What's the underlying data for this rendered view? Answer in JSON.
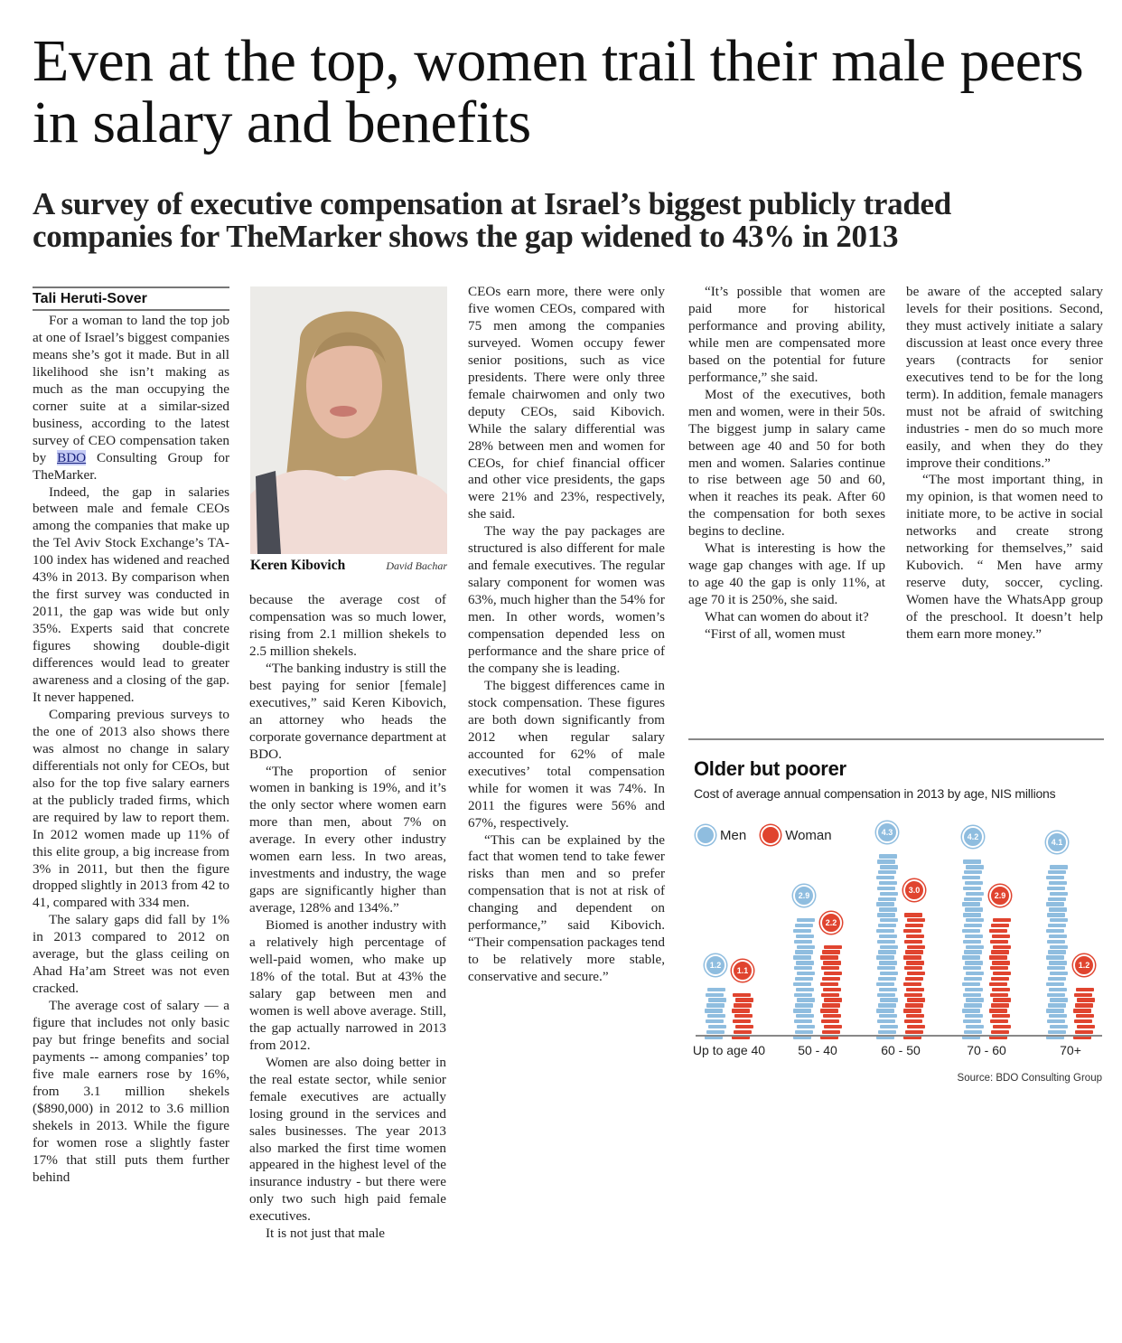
{
  "article": {
    "headline": "Even at the top, women trail their male peers in salary and benefits",
    "deck": "A survey of executive compensation at Israel’s biggest publicly traded companies for TheMarker shows the gap widened to 43% in 2013",
    "byline": "Tali Heruti-Sover",
    "photo": {
      "caption_name": "Keren Kibovich",
      "credit": "David Bachar"
    },
    "link_text": "BDO",
    "columns": [
      {
        "paragraphs": [
          {
            "before": "For a woman to land the top job at one of Israel’s biggest companies means she’s got it made. But in all likelihood she isn’t making as much as the man occupying the corner suite at a similar-sized business, according to the latest survey of CEO compensation taken by ",
            "link": "BDO",
            "after": " Consulting Group for TheMarker."
          },
          {
            "text": "Indeed, the gap in salaries between male and female CEOs among the companies that make up the Tel Aviv Stock Exchange’s TA-100 index has widened and reached 43% in 2013. By comparison when the first survey was conducted in 2011, the gap was wide but only 35%. Experts said that concrete figures showing double-digit differences would lead to greater awareness and a closing of the gap. It never happened."
          },
          {
            "text": "Comparing previous surveys to the one of 2013 also shows there was almost no change in salary differentials not only for CEOs, but also for the top five salary earners at the publicly traded firms, which are required by law to report them. In 2012 women made up 11% of this elite group, a big increase from 3% in 2011, but then the figure dropped slightly in 2013 from 42 to 41, compared with 334 men."
          },
          {
            "text": "The salary gaps did fall by 1% in 2013 compared to 2012 on average, but the glass ceiling on Ahad Ha’am Street was not even cracked."
          },
          {
            "text": "The average cost of salary — a figure that includes not only basic pay but fringe benefits and social payments -- among companies’ top five male earners rose by 16%, from 3.1 million shekels ($890,000) in 2012 to 3.6 million shekels in 2013. While the figure for women rose a slightly faster 17% that still puts them further behind"
          }
        ]
      },
      {
        "paragraphs": [
          {
            "text": "because the average cost of compensation was so much lower, rising from 2.1 million shekels to 2.5 million shekels.",
            "noindent": true
          },
          {
            "text": "“The banking industry is still the best paying for senior [female] executives,” said Keren Kibovich, an attorney who heads the corporate governance department at BDO."
          },
          {
            "text": "“The proportion of senior women in banking is 19%, and it’s the only sector where women earn more than men, about 7% on average. In every other industry women earn less. In two areas, investments and industry, the wage gaps are significantly higher than average, 128% and 134%.”"
          },
          {
            "text": "Biomed is another industry with a relatively high percentage of well-paid women, who make up 18% of the total. But at 43% the salary gap between men and women is well above average. Still, the gap actually narrowed in 2013 from 2012."
          },
          {
            "text": "Women are also doing better in the real estate sector, while senior female executives are actually losing ground in the services and sales businesses. The year 2013 also marked the first time women appeared in the highest level of the insurance industry - but there were only two such high paid female executives."
          },
          {
            "text": "It is not just that male"
          }
        ]
      },
      {
        "paragraphs": [
          {
            "text": "CEOs earn more, there were only five women CEOs, compared with 75 men among the companies surveyed. Women occupy fewer senior positions, such as vice presidents. There were only three female chairwomen and only two deputy CEOs, said Kibovich. While the salary differential was 28% between men and women for CEOs, for chief financial officer and other vice presidents, the gaps were 21% and 23%, respectively, she said.",
            "noindent": true
          },
          {
            "text": "The way the pay packages are structured is also different for male and female executives. The regular salary component for women was 63%, much higher than the 54% for men. In other words, women’s compensation depended less on performance and the share price of the company she is leading."
          },
          {
            "text": "The biggest differences came in stock compensation. These figures are both down significantly from 2012 when regular salary accounted for 62% of male executives’ total compensation while for women it was 74%. In 2011 the figures were 56% and 67%, respectively."
          },
          {
            "text": "“This can be explained by the fact that women tend to take fewer risks than men and so prefer compensation that is not at risk of changing and dependent on performance,” said Kibovich. “Their compensation packages tend to be relatively more stable, conservative and secure.”"
          }
        ]
      },
      {
        "paragraphs": [
          {
            "text": "“It’s possible that women are paid more for historical performance and proving ability, while men are compensated more based on the potential for future performance,” she said."
          },
          {
            "text": "Most of the executives, both men and women, were in their 50s. The biggest jump in salary came between age 40 and 50 for both men and women. Salaries continue to rise between age 50 and 60, when it reaches its peak. After 60 the compensation for both sexes begins to decline."
          },
          {
            "text": "What is interesting is how the wage gap changes with age. If up to age 40 the gap is only 11%, at age 70 it is 250%, she said."
          },
          {
            "text": "What can women do about it?"
          },
          {
            "text": "“First of all, women must"
          }
        ]
      },
      {
        "paragraphs": [
          {
            "text": "be aware of the accepted salary levels for their positions. Second, they must actively initiate a salary discussion at least once every three years (contracts for senior executives tend to be for the long term). In addition, female managers must not be afraid of switching industries - men do so much more easily, and when they do they improve their conditions.”",
            "noindent": true
          },
          {
            "text": "“The most important thing, in my opinion, is that women need to initiate more, to be active in social networks and create strong networking for themselves,” said Kubovich. “ Men have army reserve duty, soccer, cycling. Women have the WhatsApp group of the preschool. It doesn’t help them earn more money.”"
          }
        ]
      }
    ]
  },
  "chart": {
    "title": "Older but poorer",
    "subtitle": "Cost of average annual compensation in 2013 by age, NIS millions",
    "legend": {
      "men": "Men",
      "women": "Woman"
    },
    "source": "Source: BDO Consulting Group",
    "colors": {
      "men": "#8fbddf",
      "women": "#e0442f"
    }
  },
  "chart_data": {
    "type": "bar",
    "title": "Older but poorer",
    "subtitle": "Cost of average annual compensation in 2013 by age, NIS millions",
    "categories": [
      "Up to age 40",
      "50 - 40",
      "60 - 50",
      "70 - 60",
      "70+"
    ],
    "series": [
      {
        "name": "Men",
        "values": [
          1.2,
          2.9,
          4.3,
          4.2,
          4.1
        ]
      },
      {
        "name": "Woman",
        "values": [
          1.1,
          2.2,
          3.0,
          2.9,
          1.2
        ]
      }
    ],
    "xlabel": "",
    "ylabel": "NIS millions",
    "grid": false,
    "legend_position": "top-left",
    "source": "Source: BDO Consulting Group"
  }
}
